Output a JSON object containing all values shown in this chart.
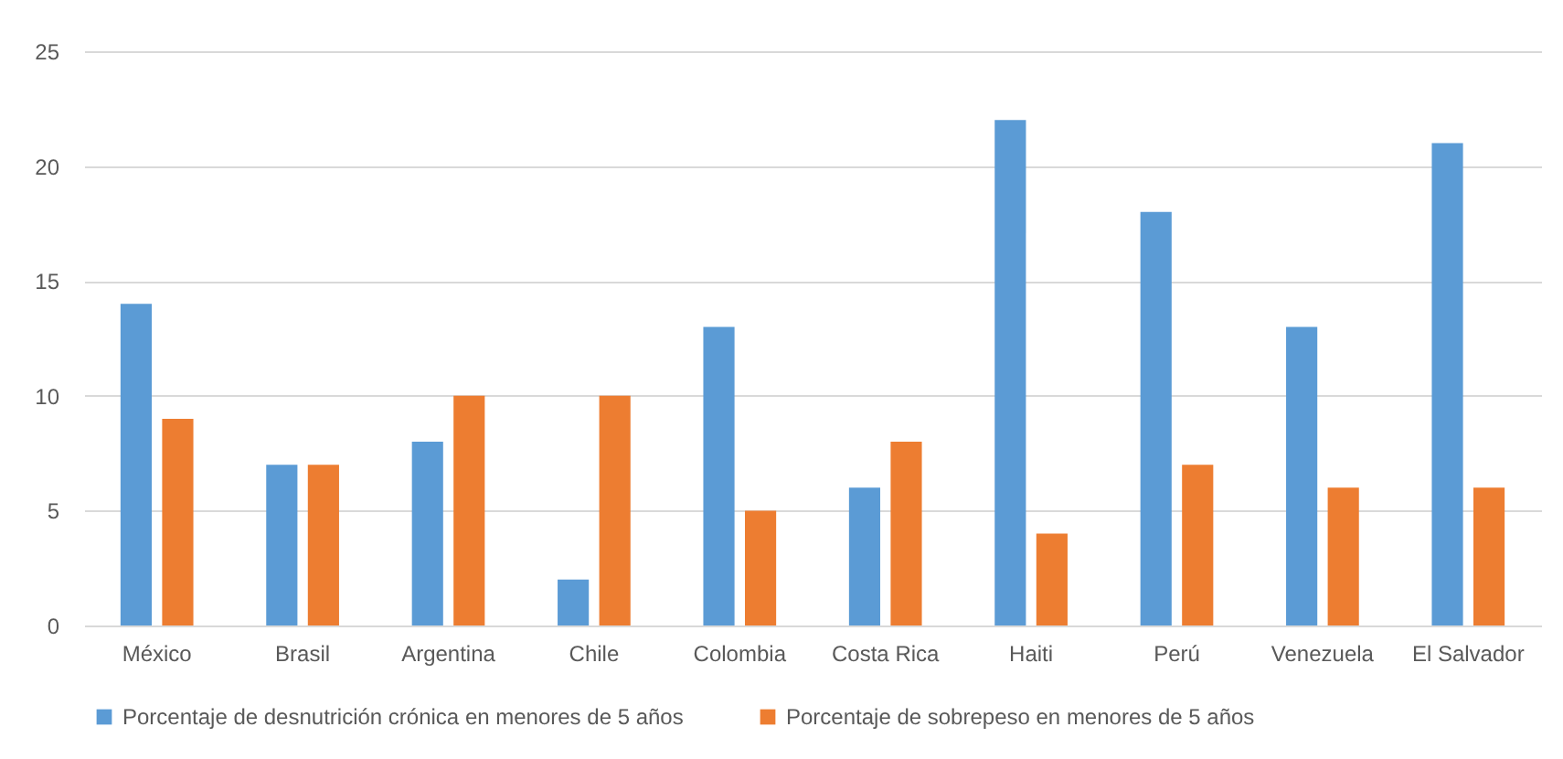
{
  "chart_data": {
    "type": "bar",
    "categories": [
      "México",
      "Brasil",
      "Argentina",
      "Chile",
      "Colombia",
      "Costa Rica",
      "Haiti",
      "Perú",
      "Venezuela",
      "El Salvador"
    ],
    "series": [
      {
        "name": "Porcentaje de desnutrición crónica en menores de 5 años",
        "color": "#5b9bd5",
        "values": [
          14,
          7,
          8,
          2,
          13,
          6,
          22,
          18,
          13,
          21
        ]
      },
      {
        "name": "Porcentaje de sobrepeso en menores de 5 años",
        "color": "#ed7d31",
        "values": [
          9,
          7,
          10,
          10,
          5,
          8,
          4,
          7,
          6,
          6
        ]
      }
    ],
    "ylim": [
      0,
      25
    ],
    "yticks": [
      0,
      5,
      10,
      15,
      20,
      25
    ],
    "grid": "y",
    "legend": "bottom"
  }
}
